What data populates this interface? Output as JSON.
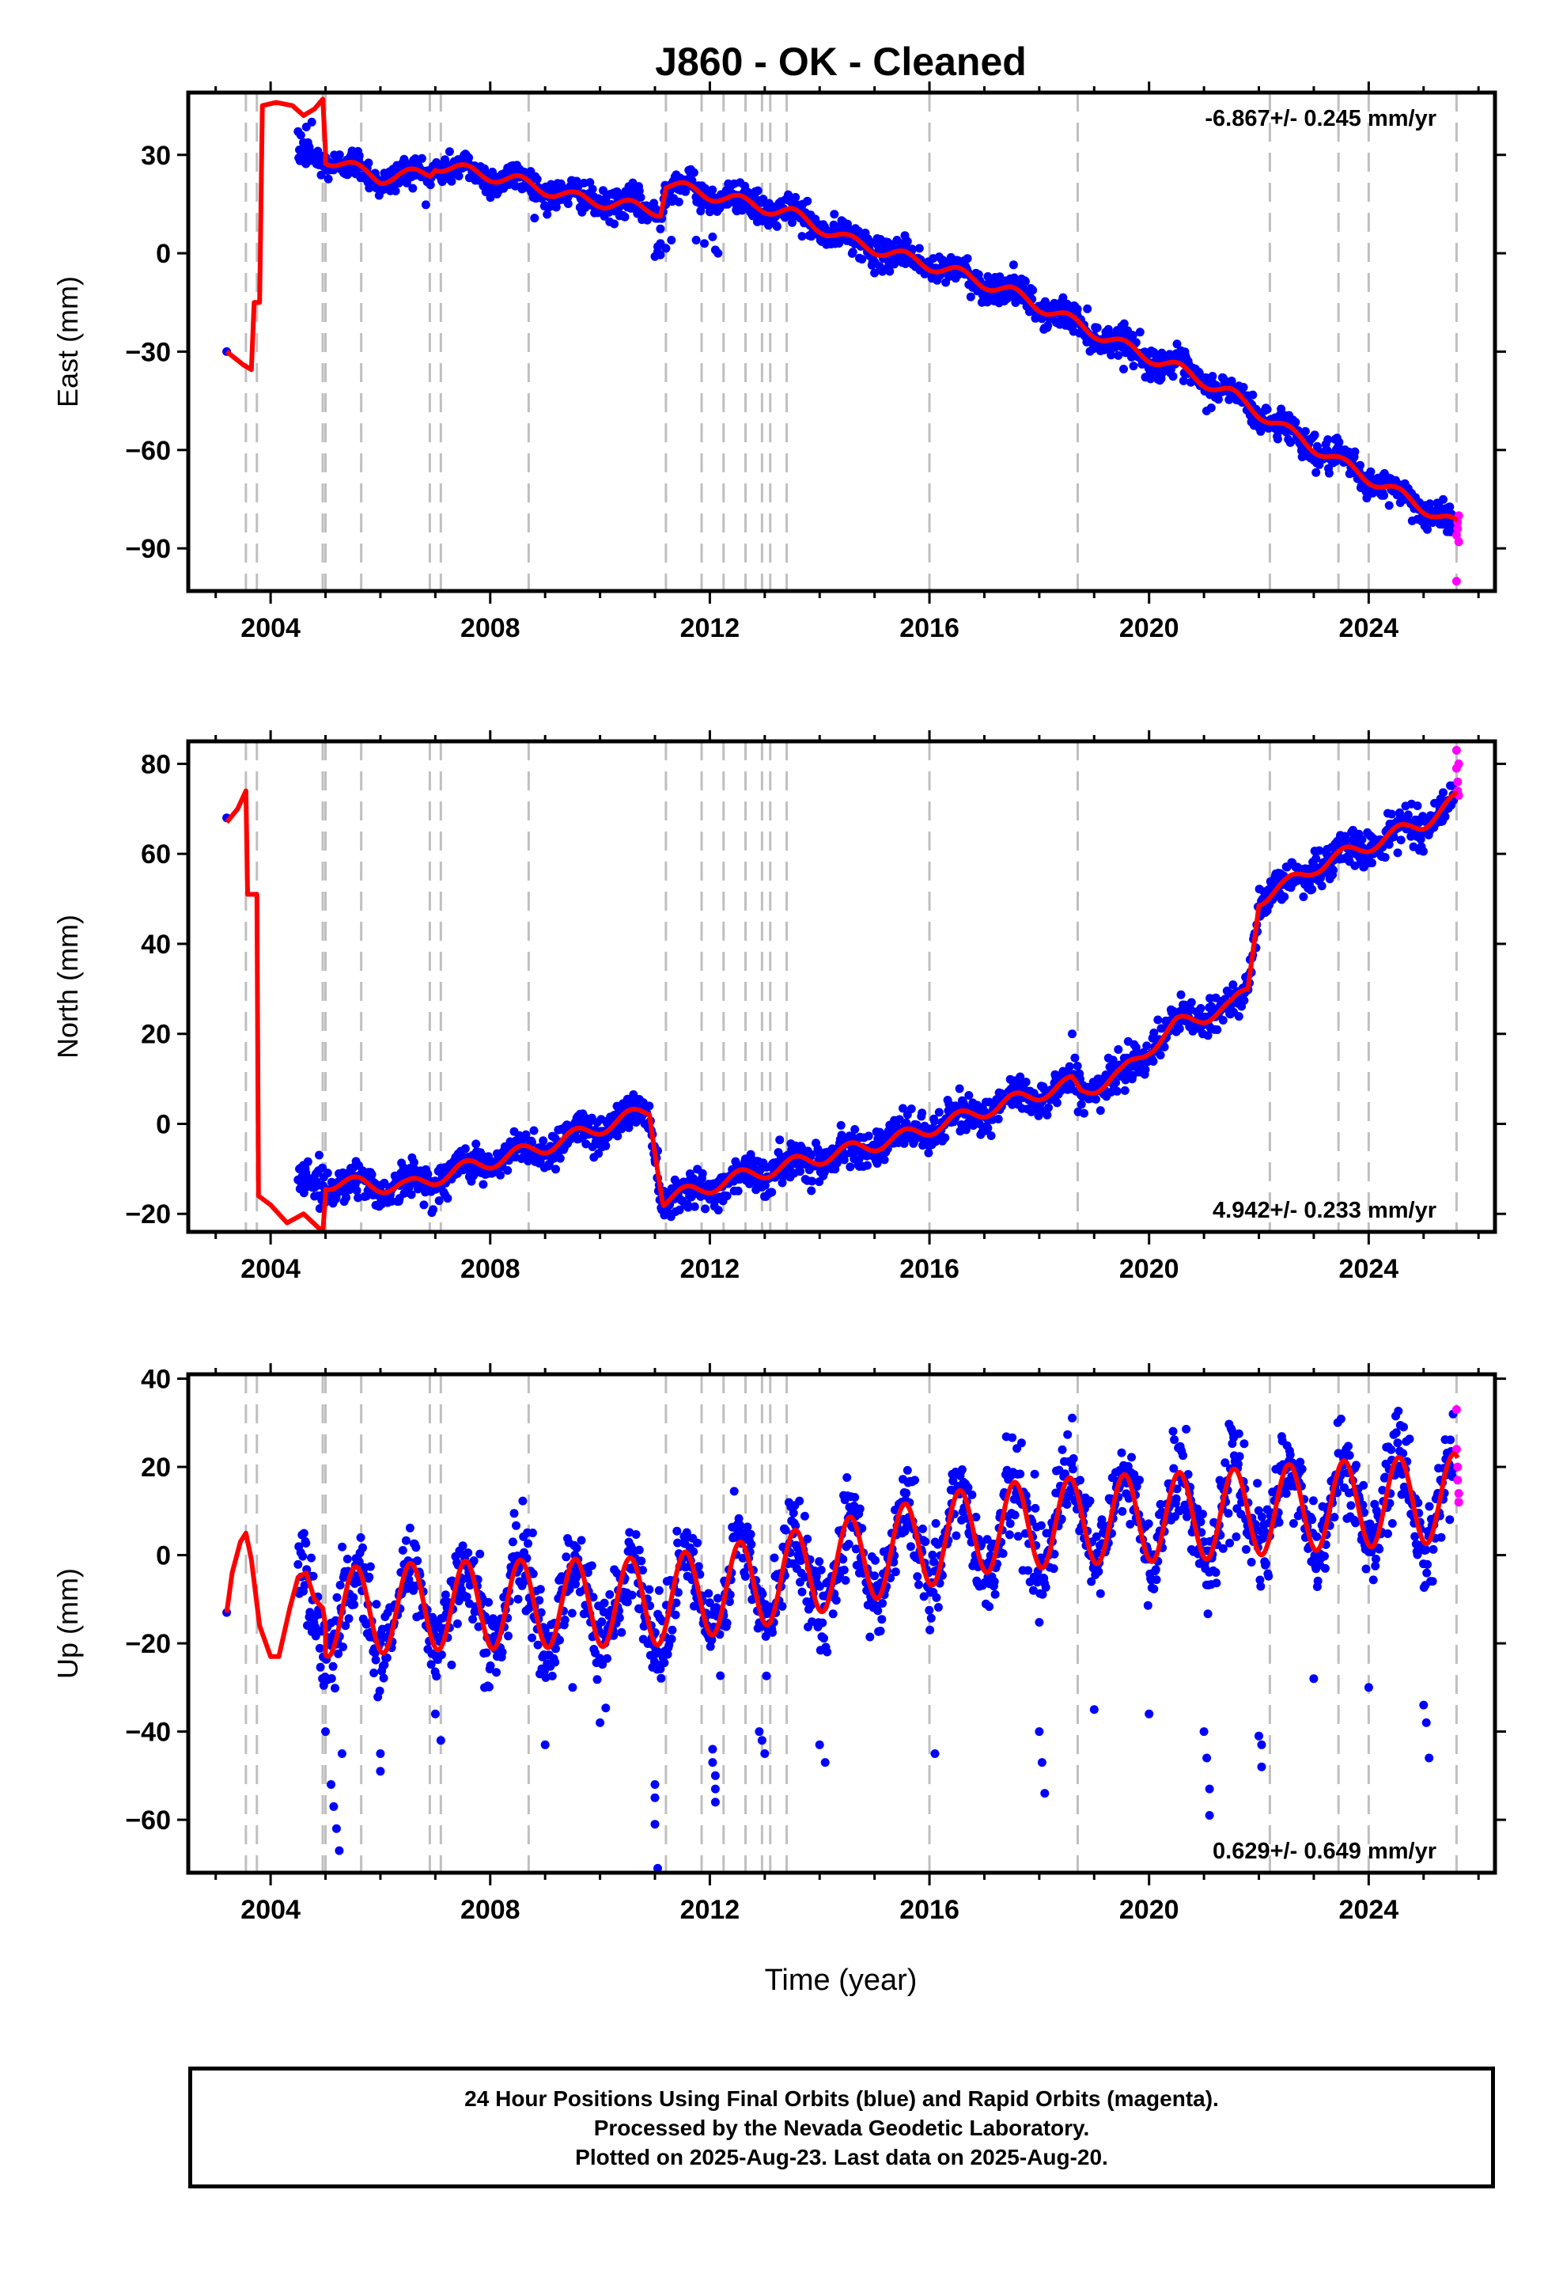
{
  "title": "J860  - OK - Cleaned",
  "footer": {
    "lines": [
      "24 Hour Positions Using Final Orbits (blue) and Rapid Orbits (magenta).",
      "Processed by the Nevada Geodetic Laboratory.",
      "Plotted on 2025-Aug-23. Last data on 2025-Aug-20."
    ]
  },
  "colors": {
    "final": "#0000ff",
    "rapid": "#ff00ff",
    "model": "#ff0000",
    "event": "#bfbfbf"
  },
  "xaxis": {
    "label": "Time (year)",
    "range": [
      2002.5,
      2026.3
    ],
    "ticks": [
      2004,
      2008,
      2012,
      2016,
      2020,
      2024
    ]
  },
  "event_lines": [
    2003.55,
    2003.75,
    2004.95,
    2005.0,
    2005.65,
    2006.9,
    2007.1,
    2008.7,
    2011.2,
    2011.85,
    2012.25,
    2012.65,
    2012.95,
    2013.1,
    2013.4,
    2016.0,
    2018.7,
    2022.2,
    2023.45,
    2024.0,
    2025.6
  ],
  "chart_data": [
    {
      "type": "scatter",
      "name": "east",
      "ylabel": "East (mm)",
      "ylim": [
        -103,
        49
      ],
      "yticks": [
        -90,
        -60,
        -30,
        0,
        30
      ],
      "rate": "-6.867+/- 0.245 mm/yr",
      "rate_position": "top-right",
      "start": 2004.5,
      "end": 2025.55,
      "early_points": [
        [
          2003.2,
          -30.0
        ],
        [
          2004.55,
          36.0
        ],
        [
          2004.65,
          38.5
        ],
        [
          2004.75,
          40.0
        ]
      ],
      "rapid_points": [
        [
          2025.6,
          -100.0
        ],
        [
          2025.6,
          -86.0
        ],
        [
          2025.62,
          -84.0
        ],
        [
          2025.62,
          -82.0
        ],
        [
          2025.64,
          -80.0
        ],
        [
          2025.64,
          -88.0
        ]
      ],
      "outliers": [
        [
          2011.0,
          -1.0
        ],
        [
          2011.05,
          2.0
        ],
        [
          2011.1,
          3.0
        ],
        [
          2011.1,
          -0.5
        ],
        [
          2011.05,
          0.5
        ],
        [
          2011.2,
          1.5
        ],
        [
          2011.3,
          4.0
        ],
        [
          2012.05,
          5.0
        ],
        [
          2012.1,
          1.0
        ],
        [
          2012.15,
          0.0
        ],
        [
          2011.75,
          4.0
        ],
        [
          2011.9,
          3.0
        ]
      ],
      "trend_knots": [
        [
          2005.0,
          29
        ],
        [
          2006.0,
          23
        ],
        [
          2006.9,
          24.5
        ],
        [
          2007.0,
          27
        ],
        [
          2008.5,
          22
        ],
        [
          2009.5,
          17
        ],
        [
          2011.1,
          13
        ],
        [
          2011.2,
          21
        ],
        [
          2012.5,
          16
        ],
        [
          2013.5,
          12
        ],
        [
          2014.5,
          4
        ],
        [
          2015.5,
          -1
        ],
        [
          2016.5,
          -6
        ],
        [
          2017.5,
          -12
        ],
        [
          2018.5,
          -20
        ],
        [
          2019.5,
          -28
        ],
        [
          2020.5,
          -35
        ],
        [
          2021.5,
          -43
        ],
        [
          2022.5,
          -54
        ],
        [
          2023.5,
          -64
        ],
        [
          2024.5,
          -73
        ],
        [
          2025.6,
          -83
        ]
      ],
      "seasonal_amplitude": 1.8,
      "scatter_sigma": 2.3,
      "model_early": [
        [
          2003.2,
          -30
        ],
        [
          2003.5,
          -34
        ],
        [
          2003.65,
          -35.5
        ],
        [
          2003.7,
          -15
        ],
        [
          2003.8,
          -15
        ],
        [
          2003.85,
          45
        ],
        [
          2004.1,
          46
        ],
        [
          2004.4,
          45
        ],
        [
          2004.6,
          42
        ],
        [
          2004.8,
          44
        ],
        [
          2004.95,
          47
        ],
        [
          2005.0,
          31
        ]
      ]
    },
    {
      "type": "scatter",
      "name": "north",
      "ylabel": "North (mm)",
      "ylim": [
        -24,
        85
      ],
      "yticks": [
        -20,
        0,
        20,
        40,
        60,
        80
      ],
      "rate": "4.942+/- 0.233 mm/yr",
      "rate_position": "bottom-right",
      "start": 2004.5,
      "end": 2025.55,
      "early_points": [
        [
          2003.2,
          68.0
        ]
      ],
      "rapid_points": [
        [
          2025.6,
          83.0
        ],
        [
          2025.6,
          79.0
        ],
        [
          2025.62,
          76.0
        ],
        [
          2025.62,
          74.0
        ],
        [
          2025.64,
          80.0
        ],
        [
          2025.64,
          73.0
        ]
      ],
      "outliers": [
        [
          2010.95,
          -5.0
        ],
        [
          2011.0,
          -8.0
        ],
        [
          2011.05,
          -6.0
        ],
        [
          2018.6,
          20.0
        ],
        [
          2012.1,
          -17.0
        ]
      ],
      "trend_knots": [
        [
          2005.0,
          -13
        ],
        [
          2006.5,
          -14
        ],
        [
          2007.5,
          -10
        ],
        [
          2009.0,
          -5
        ],
        [
          2010.9,
          3
        ],
        [
          2011.15,
          -17
        ],
        [
          2012.5,
          -12
        ],
        [
          2013.5,
          -9
        ],
        [
          2014.5,
          -6
        ],
        [
          2015.5,
          -3
        ],
        [
          2016.5,
          1
        ],
        [
          2017.5,
          5
        ],
        [
          2018.6,
          9
        ],
        [
          2018.75,
          7
        ],
        [
          2019.5,
          11
        ],
        [
          2020.0,
          17
        ],
        [
          2020.5,
          22
        ],
        [
          2021.0,
          24
        ],
        [
          2021.5,
          26
        ],
        [
          2021.8,
          30
        ],
        [
          2022.0,
          50
        ],
        [
          2022.5,
          53
        ],
        [
          2023.0,
          57
        ],
        [
          2024.0,
          62
        ],
        [
          2025.0,
          67
        ],
        [
          2025.6,
          72
        ]
      ],
      "seasonal_amplitude": 1.6,
      "scatter_sigma": 2.0,
      "model_early": [
        [
          2003.2,
          67
        ],
        [
          2003.4,
          70
        ],
        [
          2003.55,
          74
        ],
        [
          2003.58,
          51
        ],
        [
          2003.75,
          51
        ],
        [
          2003.78,
          -16
        ],
        [
          2004.0,
          -18
        ],
        [
          2004.3,
          -22
        ],
        [
          2004.6,
          -20
        ],
        [
          2004.95,
          -24
        ],
        [
          2005.0,
          -16
        ]
      ]
    },
    {
      "type": "scatter",
      "name": "up",
      "ylabel": "Up (mm)",
      "ylim": [
        -72,
        41
      ],
      "yticks": [
        -60,
        -40,
        -20,
        0,
        20,
        40
      ],
      "rate": "0.629+/- 0.649 mm/yr",
      "rate_position": "bottom-right",
      "start": 2004.5,
      "end": 2025.55,
      "early_points": [
        [
          2003.2,
          -13.0
        ]
      ],
      "rapid_points": [
        [
          2025.6,
          33.0
        ],
        [
          2025.6,
          24.0
        ],
        [
          2025.62,
          20.0
        ],
        [
          2025.62,
          17.0
        ],
        [
          2025.64,
          14.0
        ],
        [
          2025.64,
          12.0
        ]
      ],
      "outliers": [
        [
          2005.0,
          -40.0
        ],
        [
          2005.1,
          -52.0
        ],
        [
          2005.15,
          -57.0
        ],
        [
          2005.2,
          -62.0
        ],
        [
          2005.25,
          -67.0
        ],
        [
          2005.3,
          -45.0
        ],
        [
          2006.0,
          -45.0
        ],
        [
          2006.0,
          -49.0
        ],
        [
          2007.0,
          -36.0
        ],
        [
          2007.1,
          -42.0
        ],
        [
          2009.0,
          -43.0
        ],
        [
          2010.0,
          -38.0
        ],
        [
          2011.0,
          -52.0
        ],
        [
          2011.0,
          -55.0
        ],
        [
          2011.0,
          -61.0
        ],
        [
          2011.05,
          -71.0
        ],
        [
          2012.05,
          -44.0
        ],
        [
          2012.05,
          -47.0
        ],
        [
          2012.1,
          -50.0
        ],
        [
          2012.1,
          -53.0
        ],
        [
          2012.1,
          -56.0
        ],
        [
          2012.9,
          -40.0
        ],
        [
          2012.95,
          -42.0
        ],
        [
          2013.0,
          -45.0
        ],
        [
          2014.0,
          -43.0
        ],
        [
          2014.1,
          -47.0
        ],
        [
          2018.0,
          -40.0
        ],
        [
          2018.05,
          -47.0
        ],
        [
          2018.1,
          -54.0
        ],
        [
          2019.0,
          -35.0
        ],
        [
          2020.0,
          -36.0
        ],
        [
          2021.0,
          -40.0
        ],
        [
          2021.05,
          -46.0
        ],
        [
          2021.1,
          -53.0
        ],
        [
          2021.1,
          -59.0
        ],
        [
          2022.0,
          -41.0
        ],
        [
          2022.05,
          -43.0
        ],
        [
          2022.05,
          -48.0
        ],
        [
          2023.0,
          -28.0
        ],
        [
          2024.0,
          -30.0
        ],
        [
          2025.0,
          -34.0
        ],
        [
          2025.05,
          -38.0
        ],
        [
          2025.1,
          -46.0
        ],
        [
          2016.1,
          -45.0
        ],
        [
          2009.5,
          -30.0
        ]
      ],
      "trend_knots": [
        [
          2005.0,
          -13
        ],
        [
          2007.0,
          -11.5
        ],
        [
          2009.0,
          -11
        ],
        [
          2011.0,
          -10.5
        ],
        [
          2013.0,
          -6
        ],
        [
          2015.0,
          0
        ],
        [
          2017.0,
          6
        ],
        [
          2019.0,
          8
        ],
        [
          2021.0,
          9
        ],
        [
          2023.0,
          11
        ],
        [
          2025.6,
          13
        ]
      ],
      "seasonal_amplitude": 10.0,
      "scatter_sigma": 5.0,
      "model_early": [
        [
          2003.2,
          -13
        ],
        [
          2003.3,
          -4
        ],
        [
          2003.45,
          3
        ],
        [
          2003.55,
          5
        ],
        [
          2003.65,
          -1
        ],
        [
          2003.8,
          -16
        ],
        [
          2004.0,
          -23
        ],
        [
          2004.15,
          -23
        ],
        [
          2004.35,
          -12
        ],
        [
          2004.5,
          -5
        ],
        [
          2004.65,
          -4
        ],
        [
          2004.8,
          -10
        ],
        [
          2004.95,
          -12
        ],
        [
          2005.0,
          -16
        ]
      ]
    }
  ]
}
